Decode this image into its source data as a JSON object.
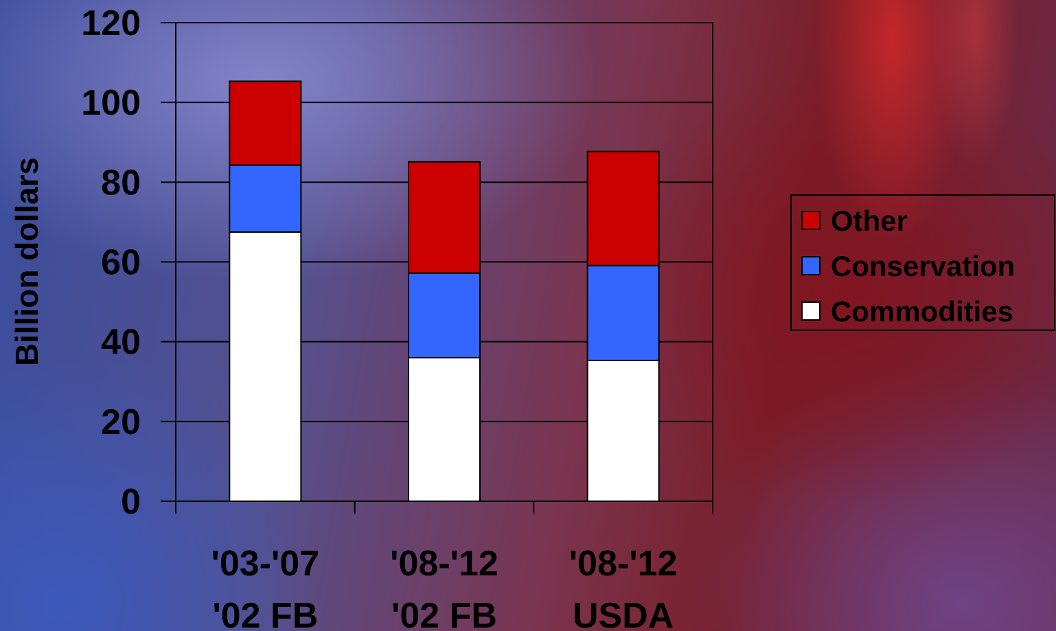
{
  "chart_data": {
    "type": "bar",
    "stacked": true,
    "categories": [
      [
        "'03-'07",
        "'02 FB"
      ],
      [
        "'08-'12",
        "'02 FB"
      ],
      [
        "'08-'12",
        "USDA"
      ]
    ],
    "series": [
      {
        "name": "Commodities",
        "color": "#ffffff",
        "values": [
          67.5,
          36,
          35.3
        ]
      },
      {
        "name": "Conservation",
        "color": "#3366ff",
        "values": [
          16.8,
          21.2,
          23.8
        ]
      },
      {
        "name": "Other",
        "color": "#cc0000",
        "values": [
          21,
          27.9,
          28.6
        ]
      }
    ],
    "ylabel": "Billion dollars",
    "ylim": [
      0,
      120
    ],
    "yticks": [
      0,
      20,
      40,
      60,
      80,
      100,
      120
    ],
    "grid": true,
    "legend": {
      "position": "right",
      "order": [
        "Other",
        "Conservation",
        "Commodities"
      ]
    }
  }
}
